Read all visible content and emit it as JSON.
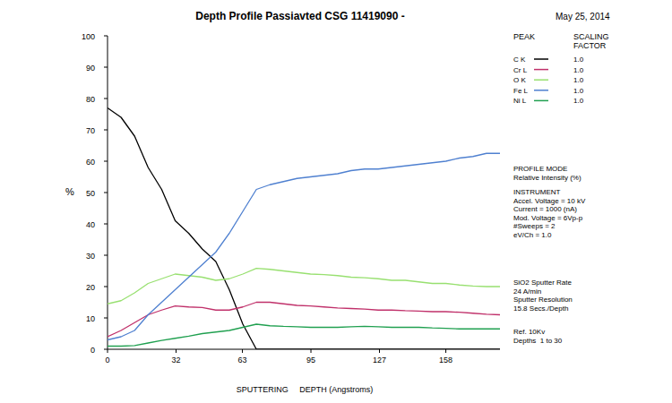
{
  "chart_data": {
    "type": "line",
    "title": "Depth Profile Passiavted CSG 11419090 -",
    "date": "May 25, 2014",
    "y_label": "%",
    "x_label": "SPUTTERING     DEPTH (Angstroms)",
    "legend_header": {
      "peak": "PEAK",
      "scaling": [
        "SCALING",
        "FACTOR"
      ]
    },
    "legend": "top-right",
    "grid": false,
    "xlim": [
      0,
      183.28
    ],
    "ylim": [
      0,
      100
    ],
    "xticks": [
      0,
      32,
      63,
      95,
      127,
      158
    ],
    "yticks": [
      0,
      10,
      20,
      30,
      40,
      50,
      60,
      70,
      80,
      90,
      100
    ],
    "x": [
      0,
      6.32,
      12.64,
      18.96,
      25.28,
      31.6,
      37.92,
      44.24,
      50.56,
      56.88,
      63.2,
      69.52,
      75.84,
      82.16,
      88.48,
      94.8,
      101.12,
      107.44,
      113.76,
      120.08,
      126.4,
      132.72,
      139.04,
      145.36,
      151.68,
      158,
      164.32,
      170.64,
      176.96,
      183.28
    ],
    "series": [
      {
        "name": "C K",
        "color": "#000000",
        "scaling_factor": {
          "value": 1,
          "label": "1.0"
        },
        "values": [
          77,
          74,
          68,
          58,
          51,
          41,
          37,
          32,
          28,
          19,
          8,
          0,
          0,
          0,
          0,
          0,
          0,
          0,
          0,
          0,
          0,
          0,
          0,
          0,
          0,
          0,
          0,
          0,
          0,
          0
        ]
      },
      {
        "name": "Cr L",
        "color": "#c0306a",
        "scaling_factor": {
          "value": 1,
          "label": "1.0"
        },
        "values": [
          4,
          6,
          8.5,
          11,
          12.5,
          13.8,
          13.5,
          13.3,
          12.5,
          12.5,
          13.5,
          15,
          15,
          14.5,
          14,
          13.8,
          13.5,
          13.2,
          13,
          12.8,
          12.5,
          12.5,
          12.3,
          12.2,
          12,
          12,
          11.8,
          11.5,
          11.2,
          11
        ]
      },
      {
        "name": "O K",
        "color": "#98e070",
        "scaling_factor": {
          "value": 1,
          "label": "1.0"
        },
        "values": [
          14.5,
          15.5,
          18,
          21,
          22.5,
          24,
          23.5,
          23,
          22,
          22.5,
          24,
          25.8,
          25.5,
          25,
          24.5,
          24,
          23.8,
          23.5,
          23,
          22.8,
          22.5,
          22,
          22,
          21.5,
          21,
          21,
          20.5,
          20.2,
          20,
          20
        ]
      },
      {
        "name": "Fe L",
        "color": "#4f80d0",
        "scaling_factor": {
          "value": 1,
          "label": "1.0"
        },
        "values": [
          3,
          4,
          6,
          11,
          15,
          19,
          23,
          27,
          31,
          37,
          44,
          51,
          52.5,
          53.5,
          54.5,
          55,
          55.5,
          56,
          57,
          57.5,
          57.5,
          58,
          58.5,
          59,
          59.5,
          60,
          61,
          61.5,
          62.5,
          62.5
        ]
      },
      {
        "name": "Ni L",
        "color": "#20a050",
        "scaling_factor": {
          "value": 1,
          "label": "1.0"
        },
        "values": [
          1,
          1,
          1.2,
          2,
          2.8,
          3.5,
          4.2,
          5,
          5.5,
          6,
          7,
          8,
          7.5,
          7.3,
          7.2,
          7,
          7,
          7,
          7.2,
          7.3,
          7.2,
          7,
          7,
          7,
          6.8,
          6.7,
          6.5,
          6.5,
          6.5,
          6.5
        ]
      }
    ],
    "annotations": [
      [
        "PROFILE MODE",
        "Relative Intensity (%)"
      ],
      [
        "INSTRUMENT",
        "Accel. Voltage = 10 kV",
        "Current = 1000 (nA)",
        "Mod. Voltage = 6Vp-p",
        "#Sweeps = 2",
        "eV/Ch = 1.0"
      ],
      [
        "SiO2 Sputter Rate",
        "24 A/min",
        "Sputter Resolution",
        "15.8 Secs./Depth"
      ],
      [
        "Ref. 10Kv",
        "Depths  1 to 30"
      ]
    ]
  }
}
